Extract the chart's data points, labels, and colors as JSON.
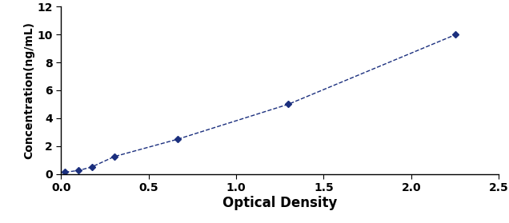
{
  "x": [
    0.023,
    0.1,
    0.175,
    0.305,
    0.668,
    1.298,
    2.254
  ],
  "y": [
    0.125,
    0.25,
    0.5,
    1.25,
    2.5,
    5.0,
    10.0
  ],
  "xlabel": "Optical Density",
  "ylabel": "Concentration(ng/mL)",
  "xlim": [
    0,
    2.5
  ],
  "ylim": [
    0,
    12
  ],
  "xticks": [
    0,
    0.5,
    1,
    1.5,
    2,
    2.5
  ],
  "yticks": [
    0,
    2,
    4,
    6,
    8,
    10,
    12
  ],
  "line_color": "#1B2F7E",
  "marker": "D",
  "marker_size": 4,
  "linewidth": 1.0,
  "linestyle": "--",
  "background_color": "#ffffff",
  "xlabel_fontsize": 12,
  "ylabel_fontsize": 10,
  "tick_fontsize": 10,
  "xlabel_fontweight": "bold",
  "ylabel_fontweight": "bold",
  "tick_fontweight": "bold"
}
